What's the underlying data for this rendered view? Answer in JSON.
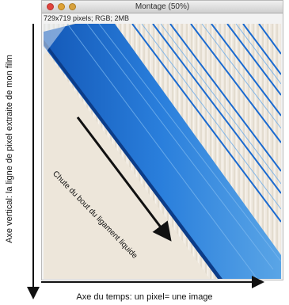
{
  "window": {
    "title": "Montage (50%)",
    "info": "729x719 pixels; RGB; 2MB"
  },
  "annotations": {
    "fall": "Chute du bout du ligament liquide",
    "y_axis": "Axe vertical: la ligne de pixel extraite de mon film",
    "x_axis": "Axe du temps: un pixel= une image"
  },
  "colors": {
    "band_blue": "#1f6fd0",
    "background": "#f0ebe3",
    "arrow": "#111111"
  }
}
